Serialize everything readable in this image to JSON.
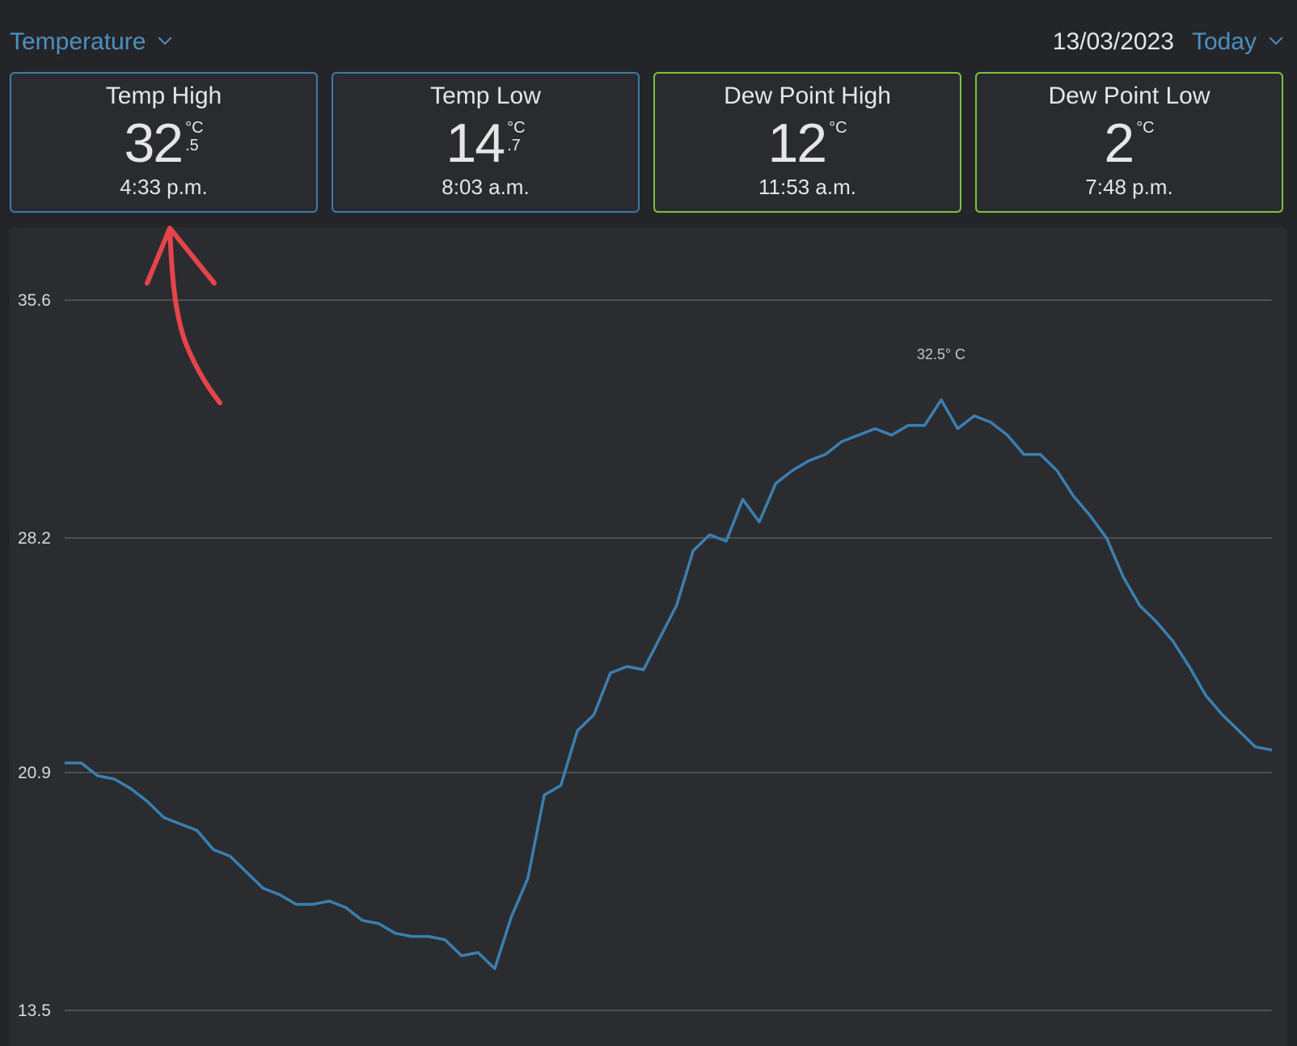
{
  "header": {
    "metric": "Temperature",
    "date": "13/03/2023",
    "range": "Today"
  },
  "cards": [
    {
      "title": "Temp High",
      "value": "32",
      "unit": "°C",
      "decimal": ".5",
      "time": "4:33 p.m.",
      "color": "#3d7aa8"
    },
    {
      "title": "Temp Low",
      "value": "14",
      "unit": "°C",
      "decimal": ".7",
      "time": "8:03 a.m.",
      "color": "#3d7aa8"
    },
    {
      "title": "Dew Point High",
      "value": "12",
      "unit": "°C",
      "time": "11:53 a.m.",
      "color": "#7cc242"
    },
    {
      "title": "Dew Point Low",
      "value": "2",
      "unit": "°C",
      "time": "7:48 p.m.",
      "color": "#7cc242"
    }
  ],
  "chart_data": {
    "type": "line",
    "annotation": "32.5° C",
    "color": "#3a7fb0",
    "grid": true,
    "ylim": [
      13.5,
      35.6
    ],
    "yticks": [
      35.6,
      28.2,
      20.9,
      13.5
    ],
    "values": [
      21.2,
      21.2,
      20.8,
      20.7,
      20.4,
      20.0,
      19.5,
      19.3,
      19.1,
      18.5,
      18.3,
      17.8,
      17.3,
      17.1,
      16.8,
      16.8,
      16.9,
      16.7,
      16.3,
      16.2,
      15.9,
      15.8,
      15.8,
      15.7,
      15.2,
      15.3,
      14.8,
      16.4,
      17.6,
      20.2,
      20.5,
      22.2,
      22.7,
      24.0,
      24.2,
      24.1,
      25.1,
      26.1,
      27.8,
      28.3,
      28.1,
      29.4,
      28.7,
      29.9,
      30.3,
      30.6,
      30.8,
      31.2,
      31.4,
      31.6,
      31.4,
      31.7,
      31.7,
      32.5,
      31.6,
      32.0,
      31.8,
      31.4,
      30.8,
      30.8,
      30.3,
      29.5,
      28.9,
      28.2,
      27.0,
      26.1,
      25.6,
      25.0,
      24.2,
      23.3,
      22.7,
      22.2,
      21.7,
      21.6
    ]
  }
}
